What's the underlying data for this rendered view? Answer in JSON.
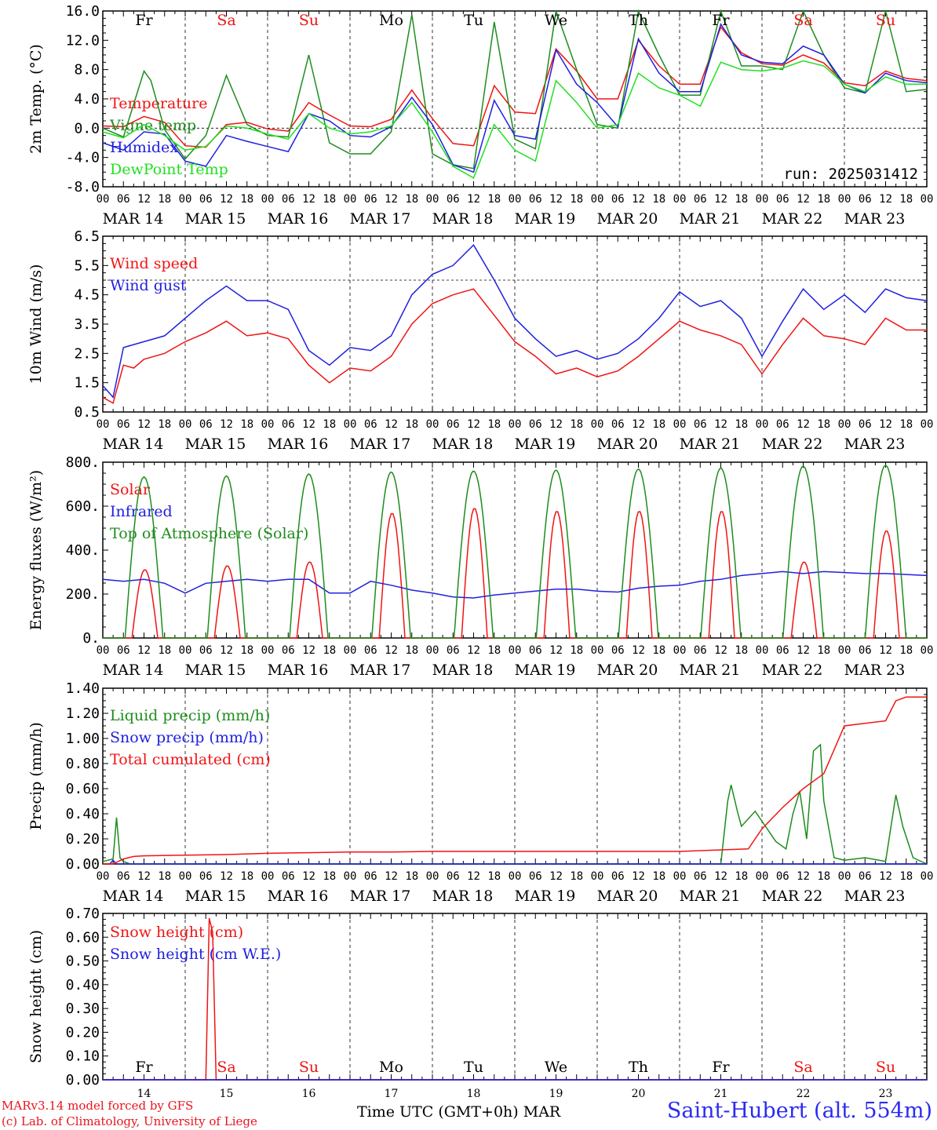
{
  "run_label": "run: 2025031412",
  "footer": {
    "model": "MARv3.14 model forced by GFS",
    "credit": "(c) Lab. of Climatology, University of Liege",
    "xlabel": "Time UTC (GMT+0h)",
    "month": "MAR",
    "station": "Saint-Hubert (alt. 554m)"
  },
  "days": {
    "dates": [
      "MAR 14",
      "MAR 15",
      "MAR 16",
      "MAR 17",
      "MAR 18",
      "MAR 19",
      "MAR 20",
      "MAR 21",
      "MAR 22",
      "MAR 23"
    ],
    "day_numbers": [
      "14",
      "15",
      "16",
      "17",
      "18",
      "19",
      "20",
      "21",
      "22",
      "23"
    ],
    "weekdays": [
      "Fr",
      "Sa",
      "Su",
      "Mo",
      "Tu",
      "We",
      "Th",
      "Fr",
      "Sa",
      "Su"
    ],
    "weekend": [
      false,
      true,
      true,
      false,
      false,
      false,
      false,
      false,
      true,
      true
    ],
    "hour_ticks": [
      "00",
      "06",
      "12",
      "18"
    ],
    "last_hour": "00"
  },
  "colors": {
    "red": "#f01414",
    "green": "#1e8c1e",
    "blue": "#2020e0",
    "lightgreen": "#20e020",
    "weekend": "#f01414"
  },
  "chart_data": [
    {
      "type": "line",
      "ylabel": "2m Temp. (°C)",
      "ylim": [
        -8,
        16
      ],
      "yticks": [
        "-8.0",
        "-4.0",
        "0.0",
        "4.0",
        "8.0",
        "12.0",
        "16.0"
      ],
      "ref_line": 0,
      "x_unit": "hours since MAR 14 00 UTC",
      "series": [
        {
          "name": "Temperature",
          "color": "red",
          "x": [
            0,
            6,
            12,
            18,
            24,
            30,
            36,
            42,
            48,
            54,
            60,
            66,
            72,
            78,
            84,
            90,
            96,
            102,
            108,
            114,
            120,
            126,
            132,
            138,
            144,
            150,
            156,
            162,
            168,
            174,
            180,
            186,
            192,
            198,
            204,
            210,
            216,
            222,
            228,
            234,
            240
          ],
          "y": [
            0.3,
            0.2,
            1.6,
            0.8,
            -2.4,
            -2.6,
            0.5,
            0.8,
            -0.1,
            -0.4,
            3.5,
            1.8,
            0.3,
            0.2,
            1.2,
            5.2,
            1.3,
            -2.1,
            -2.4,
            5.8,
            2.2,
            2.0,
            10.8,
            7.8,
            4.0,
            4.0,
            12.0,
            8.5,
            6.0,
            6.0,
            13.8,
            10.3,
            8.8,
            8.6,
            10.0,
            8.9,
            6.2,
            5.8,
            7.8,
            6.8,
            6.5
          ]
        },
        {
          "name": "Vigne temp",
          "color": "green",
          "x": [
            0,
            6,
            12,
            14,
            18,
            24,
            30,
            36,
            42,
            48,
            54,
            60,
            66,
            72,
            78,
            84,
            90,
            96,
            102,
            108,
            114,
            120,
            126,
            132,
            138,
            144,
            150,
            156,
            162,
            168,
            174,
            180,
            186,
            192,
            198,
            204,
            210,
            216,
            222,
            228,
            234,
            240
          ],
          "y": [
            0.0,
            -1.2,
            7.8,
            6.5,
            -0.2,
            -4.2,
            -1.0,
            7.2,
            0.5,
            -1.0,
            -1.2,
            10.0,
            -2.0,
            -3.5,
            -3.5,
            -0.5,
            15.5,
            -3.5,
            -5.0,
            -5.5,
            14.5,
            -1.5,
            -2.8,
            16.0,
            8.0,
            0.5,
            0.0,
            16.0,
            10.0,
            4.5,
            4.5,
            16.0,
            8.5,
            8.5,
            8.0,
            16.0,
            10.0,
            5.5,
            4.8,
            16.0,
            5.0,
            5.3
          ]
        },
        {
          "name": "Humidex",
          "color": "blue",
          "x": [
            0,
            6,
            12,
            18,
            24,
            30,
            36,
            42,
            48,
            54,
            60,
            66,
            72,
            78,
            84,
            90,
            96,
            102,
            108,
            114,
            120,
            126,
            132,
            138,
            144,
            150,
            156,
            162,
            168,
            174,
            180,
            186,
            192,
            198,
            204,
            210,
            216,
            222,
            228,
            234,
            240
          ],
          "y": [
            -2.0,
            -3.0,
            -0.5,
            -0.8,
            -4.5,
            -5.2,
            -1.0,
            -1.8,
            -2.5,
            -3.2,
            2.0,
            1.0,
            -1.0,
            -1.2,
            0.2,
            4.2,
            0.5,
            -5.0,
            -6.0,
            3.8,
            -1.0,
            -1.5,
            10.7,
            6.0,
            3.5,
            0.2,
            12.2,
            7.5,
            5.0,
            5.0,
            14.2,
            10.0,
            9.0,
            8.8,
            11.2,
            10.0,
            6.0,
            4.8,
            7.5,
            6.5,
            6.2
          ]
        },
        {
          "name": "DewPoint Temp",
          "color": "lightgreen",
          "x": [
            0,
            6,
            12,
            18,
            24,
            30,
            36,
            42,
            48,
            54,
            60,
            66,
            72,
            78,
            84,
            90,
            96,
            102,
            108,
            114,
            120,
            126,
            132,
            138,
            144,
            150,
            156,
            162,
            168,
            174,
            180,
            186,
            192,
            198,
            204,
            210,
            216,
            222,
            228,
            234,
            240
          ],
          "y": [
            -0.5,
            -1.3,
            0.5,
            -1.0,
            -3.0,
            -2.5,
            0.3,
            0.0,
            -0.8,
            -1.5,
            2.0,
            0.0,
            -0.8,
            -0.5,
            0.3,
            3.5,
            -0.5,
            -5.2,
            -6.8,
            0.5,
            -3.0,
            -4.5,
            6.5,
            3.5,
            0.0,
            0.5,
            7.5,
            5.5,
            4.5,
            3.0,
            9.0,
            8.0,
            7.8,
            8.2,
            9.2,
            8.5,
            6.0,
            5.0,
            7.0,
            6.0,
            6.0
          ]
        }
      ]
    },
    {
      "type": "line",
      "ylabel": "10m Wind (m/s)",
      "ylim": [
        0.5,
        6.5
      ],
      "yticks": [
        "0.5",
        "1.5",
        "2.5",
        "3.5",
        "4.5",
        "5.5",
        "6.5"
      ],
      "ref_line": 5.0,
      "series": [
        {
          "name": "Wind speed",
          "color": "red",
          "x": [
            0,
            3,
            6,
            9,
            12,
            18,
            24,
            30,
            36,
            42,
            48,
            54,
            60,
            66,
            72,
            78,
            84,
            90,
            96,
            102,
            108,
            114,
            120,
            126,
            132,
            138,
            144,
            150,
            156,
            162,
            168,
            174,
            180,
            186,
            192,
            198,
            204,
            210,
            216,
            222,
            228,
            234,
            240
          ],
          "y": [
            1.0,
            0.8,
            2.1,
            2.0,
            2.3,
            2.5,
            2.9,
            3.2,
            3.6,
            3.1,
            3.2,
            3.0,
            2.1,
            1.5,
            2.0,
            1.9,
            2.4,
            3.5,
            4.2,
            4.5,
            4.7,
            3.8,
            2.9,
            2.4,
            1.8,
            2.0,
            1.7,
            1.9,
            2.4,
            3.0,
            3.6,
            3.3,
            3.1,
            2.8,
            1.8,
            2.8,
            3.7,
            3.1,
            3.0,
            2.8,
            3.7,
            3.3,
            3.3
          ]
        },
        {
          "name": "Wind gust",
          "color": "blue",
          "x": [
            0,
            3,
            6,
            9,
            12,
            18,
            24,
            30,
            36,
            42,
            48,
            54,
            60,
            66,
            72,
            78,
            84,
            90,
            96,
            102,
            108,
            114,
            120,
            126,
            132,
            138,
            144,
            150,
            156,
            162,
            168,
            174,
            180,
            186,
            192,
            198,
            204,
            210,
            216,
            222,
            228,
            234,
            240
          ],
          "y": [
            1.4,
            1.0,
            2.7,
            2.8,
            2.9,
            3.1,
            3.7,
            4.3,
            4.8,
            4.3,
            4.3,
            4.0,
            2.6,
            2.1,
            2.7,
            2.6,
            3.1,
            4.5,
            5.2,
            5.5,
            6.2,
            5.0,
            3.7,
            3.0,
            2.4,
            2.6,
            2.3,
            2.5,
            3.0,
            3.7,
            4.6,
            4.1,
            4.3,
            3.7,
            2.4,
            3.6,
            4.7,
            4.0,
            4.5,
            3.9,
            4.7,
            4.4,
            4.3
          ]
        }
      ]
    },
    {
      "type": "line",
      "ylabel": "Energy fluxes (W/m²)",
      "ylim": [
        0,
        900
      ],
      "yticks": [
        "0.",
        "200.",
        "400.",
        "600.",
        "800."
      ],
      "series": [
        {
          "name": "Solar",
          "color": "red",
          "kind": "daily",
          "peaks": [
            350,
            370,
            390,
            640,
            665,
            650,
            650,
            650,
            390,
            550
          ]
        },
        {
          "name": "Infrared",
          "color": "blue",
          "x": [
            0,
            6,
            12,
            18,
            24,
            30,
            36,
            42,
            48,
            54,
            60,
            66,
            72,
            78,
            84,
            90,
            96,
            102,
            108,
            114,
            120,
            126,
            132,
            138,
            144,
            150,
            156,
            162,
            168,
            174,
            180,
            186,
            192,
            198,
            204,
            210,
            216,
            222,
            228,
            234,
            240
          ],
          "y": [
            300,
            290,
            300,
            280,
            230,
            280,
            290,
            300,
            290,
            300,
            300,
            230,
            230,
            290,
            270,
            245,
            230,
            210,
            205,
            220,
            230,
            240,
            250,
            250,
            240,
            235,
            255,
            265,
            270,
            290,
            300,
            320,
            330,
            340,
            330,
            340,
            335,
            330,
            330,
            325,
            320
          ]
        },
        {
          "name": "Top of Atmosphere (Solar)",
          "color": "green",
          "kind": "daily",
          "peaks": [
            825,
            830,
            840,
            850,
            855,
            860,
            865,
            870,
            880,
            885
          ]
        }
      ]
    },
    {
      "type": "line",
      "ylabel": "Precip (mm/h)",
      "ylim": [
        0,
        1.4
      ],
      "yticks": [
        "0.00",
        "0.20",
        "0.40",
        "0.60",
        "0.80",
        "1.00",
        "1.20",
        "1.40"
      ],
      "series": [
        {
          "name": "Liquid precip (mm/h)",
          "color": "green",
          "x": [
            0,
            3,
            4,
            5,
            6,
            8,
            12,
            24,
            48,
            96,
            120,
            168,
            180,
            182,
            183,
            185,
            186,
            190,
            193,
            196,
            199,
            201,
            203,
            205,
            207,
            209,
            210,
            213,
            216,
            222,
            228,
            231,
            233,
            236,
            240
          ],
          "y": [
            0.02,
            0.04,
            0.37,
            0.05,
            0.02,
            0.0,
            0.0,
            0.0,
            0.0,
            0.0,
            0.0,
            0.0,
            0.0,
            0.5,
            0.63,
            0.4,
            0.3,
            0.42,
            0.3,
            0.18,
            0.12,
            0.4,
            0.58,
            0.2,
            0.9,
            0.95,
            0.5,
            0.05,
            0.03,
            0.05,
            0.02,
            0.55,
            0.3,
            0.05,
            0.0
          ]
        },
        {
          "name": "Snow precip (mm/h)",
          "color": "blue",
          "x": [
            0,
            2,
            3,
            4,
            6,
            240
          ],
          "y": [
            0.0,
            0.0,
            0.03,
            0.0,
            0.0,
            0.0
          ]
        },
        {
          "name": "Total cumulated (cm)",
          "color": "red",
          "x": [
            0,
            3,
            6,
            9,
            12,
            24,
            36,
            48,
            60,
            72,
            84,
            96,
            120,
            144,
            168,
            188,
            192,
            198,
            204,
            210,
            216,
            222,
            228,
            231,
            234,
            240
          ],
          "y": [
            0.0,
            0.0,
            0.04,
            0.06,
            0.065,
            0.07,
            0.075,
            0.085,
            0.09,
            0.095,
            0.095,
            0.1,
            0.1,
            0.1,
            0.1,
            0.12,
            0.28,
            0.45,
            0.6,
            0.72,
            1.1,
            1.12,
            1.14,
            1.3,
            1.33,
            1.33
          ]
        }
      ]
    },
    {
      "type": "line",
      "ylabel": "Snow height (cm)",
      "ylim": [
        0,
        0.7
      ],
      "yticks": [
        "0.00",
        "0.10",
        "0.20",
        "0.30",
        "0.40",
        "0.50",
        "0.60",
        "0.70"
      ],
      "series": [
        {
          "name": "Snow height (cm)",
          "color": "red",
          "x": [
            0,
            30,
            31,
            32,
            33,
            34,
            240
          ],
          "y": [
            0.0,
            0.0,
            0.68,
            0.62,
            0.0,
            0.0,
            0.0
          ]
        },
        {
          "name": "Snow height (cm W.E.)",
          "color": "blue",
          "x": [
            0,
            240
          ],
          "y": [
            0.0,
            0.0
          ]
        }
      ]
    }
  ]
}
